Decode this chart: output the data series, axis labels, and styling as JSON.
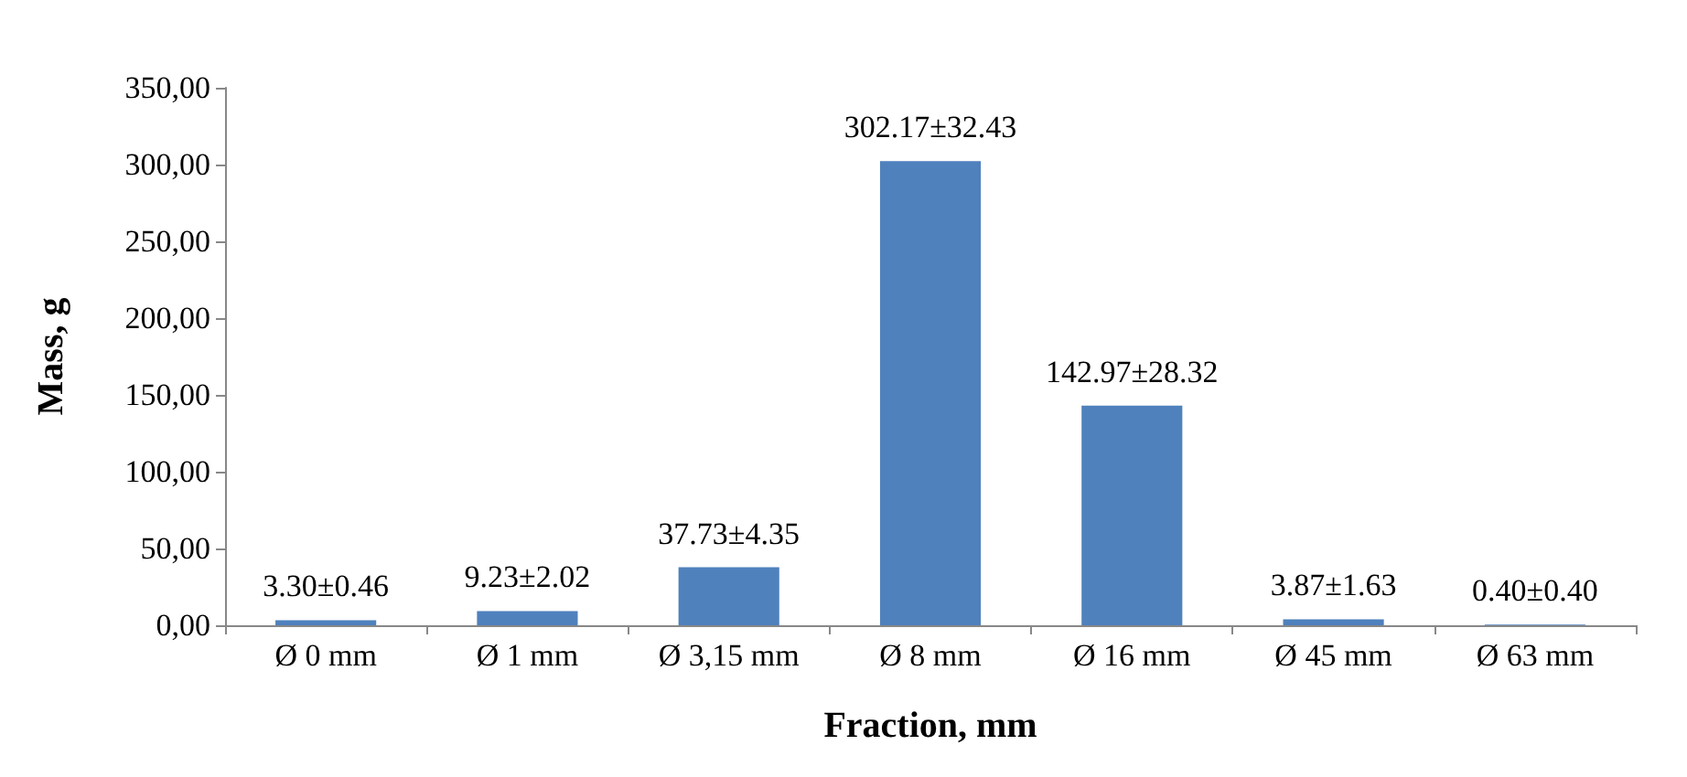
{
  "chart_data": {
    "type": "bar",
    "xlabel": "Fraction, mm",
    "ylabel": "Mass, g",
    "categories": [
      "Ø 0 mm",
      "Ø 1 mm",
      "Ø 3,15 mm",
      "Ø 8 mm",
      "Ø 16 mm",
      "Ø 45 mm",
      "Ø 63 mm"
    ],
    "values": [
      3.3,
      9.23,
      37.73,
      302.17,
      142.97,
      3.87,
      0.4
    ],
    "value_labels": [
      "3.30±0.46",
      "9.23±2.02",
      "37.73±4.35",
      "302.17±32.43",
      "142.97±28.32",
      "3.87±1.63",
      "0.40±0.40"
    ],
    "color": "#4f81bd",
    "ylim": [
      0,
      350
    ],
    "yticks": [
      {
        "value": 0,
        "label": "0,00"
      },
      {
        "value": 50,
        "label": "50,00"
      },
      {
        "value": 100,
        "label": "100,00"
      },
      {
        "value": 150,
        "label": "150,00"
      },
      {
        "value": 200,
        "label": "200,00"
      },
      {
        "value": 250,
        "label": "250,00"
      },
      {
        "value": 300,
        "label": "300,00"
      },
      {
        "value": 350,
        "label": "350,00"
      }
    ],
    "grid": false
  }
}
